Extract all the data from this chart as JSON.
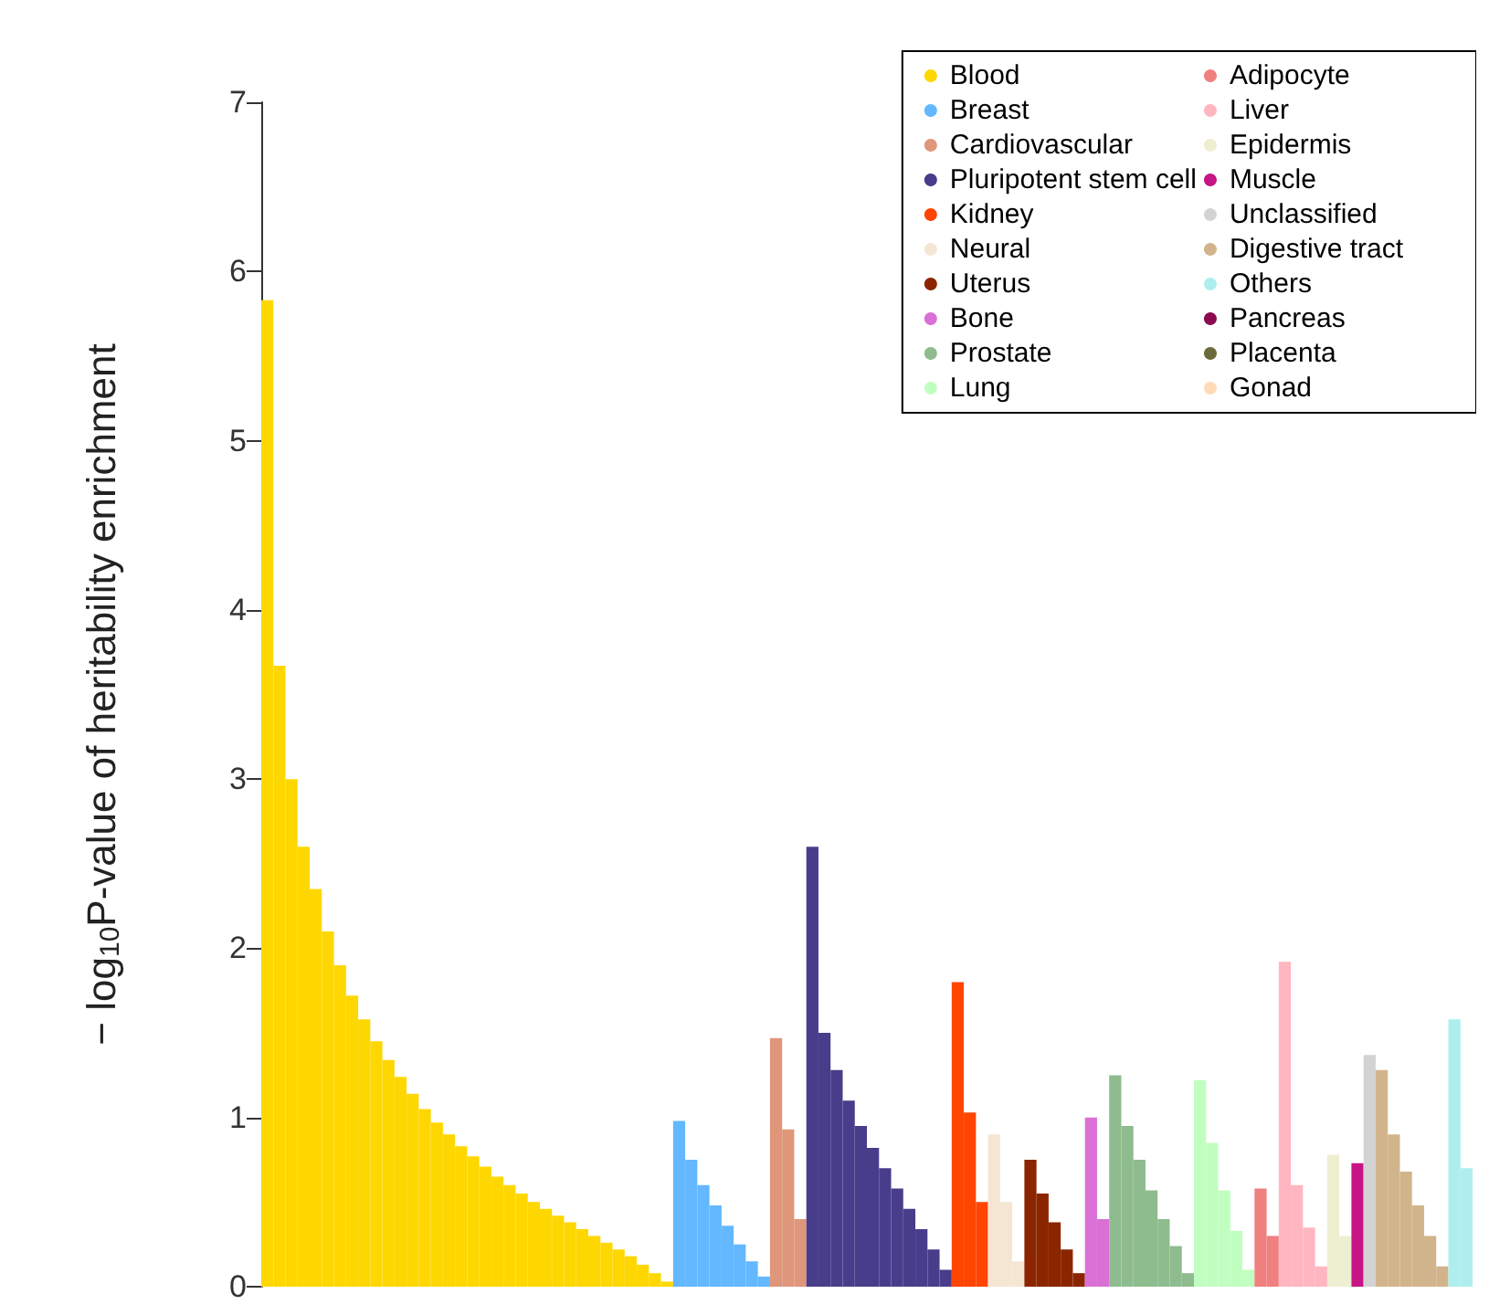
{
  "chart_data": {
    "type": "bar",
    "stacked": true,
    "ylabel": "− log$_{10}$P-value of heritability enrichment",
    "categories": [
      null,
      null,
      null,
      null,
      null,
      null,
      null,
      null,
      null,
      null,
      null,
      null,
      null,
      null,
      null,
      null,
      null,
      null,
      null,
      null,
      null,
      null,
      null,
      null,
      null,
      null,
      null,
      null,
      null,
      null,
      null,
      null,
      null,
      null,
      null,
      null,
      null,
      null,
      null,
      null,
      null,
      null,
      null,
      null,
      null,
      null,
      null,
      null,
      null,
      null,
      null,
      null,
      null,
      null,
      null,
      null,
      null,
      null,
      null,
      null,
      null,
      null,
      null,
      null,
      null,
      null,
      null,
      null,
      null,
      null,
      null,
      null,
      null,
      null,
      null,
      null,
      null,
      null,
      null,
      null,
      null,
      null,
      null,
      null,
      null,
      null,
      null,
      null,
      null,
      null,
      null,
      null,
      null,
      null,
      null,
      null,
      null,
      null,
      null,
      null
    ],
    "ylim": [
      0,
      7
    ],
    "yticks": [
      0,
      1,
      2,
      3,
      4,
      5,
      6,
      7
    ],
    "tick_labels": "y",
    "grid": false,
    "legend": "top right",
    "series": [
      {
        "name": "Blood",
        "color": "#ffd700",
        "values": [
          5.83,
          3.67,
          3.0,
          2.6,
          2.35,
          2.1,
          1.9,
          1.72,
          1.58,
          1.45,
          1.34,
          1.24,
          1.14,
          1.05,
          0.97,
          0.9,
          0.83,
          0.77,
          0.71,
          0.65,
          0.6,
          0.55,
          0.5,
          0.46,
          0.42,
          0.38,
          0.34,
          0.3,
          0.26,
          0.22,
          0.18,
          0.13,
          0.08,
          0.03,
          null,
          null,
          null,
          null,
          null,
          null,
          null,
          null,
          null,
          null,
          null,
          null,
          null,
          null,
          null,
          null,
          null,
          null,
          null,
          null,
          null,
          null,
          null,
          null,
          null,
          null,
          null,
          null,
          null,
          null,
          null,
          null,
          null,
          null,
          null,
          null,
          null,
          null,
          null,
          null,
          null,
          null,
          null,
          null,
          null,
          null,
          null,
          null,
          null,
          null,
          null,
          null,
          null,
          null,
          null,
          null,
          null,
          null,
          null,
          null,
          null,
          null,
          null,
          null,
          null,
          null
        ]
      },
      {
        "name": "Breast",
        "color": "#63b8ff",
        "values": [
          null,
          null,
          null,
          null,
          null,
          null,
          null,
          null,
          null,
          null,
          null,
          null,
          null,
          null,
          null,
          null,
          null,
          null,
          null,
          null,
          null,
          null,
          null,
          null,
          null,
          null,
          null,
          null,
          null,
          null,
          null,
          null,
          null,
          null,
          0.98,
          0.75,
          0.6,
          0.48,
          0.36,
          0.25,
          0.15,
          0.06,
          null,
          null,
          null,
          null,
          null,
          null,
          null,
          null,
          null,
          null,
          null,
          null,
          null,
          null,
          null,
          null,
          null,
          null,
          null,
          null,
          null,
          null,
          null,
          null,
          null,
          null,
          null,
          null,
          null,
          null,
          null,
          null,
          null,
          null,
          null,
          null,
          null,
          null,
          null,
          null,
          null,
          null,
          null,
          null,
          null,
          null,
          null,
          null,
          null,
          null,
          null,
          null,
          null,
          null,
          null,
          null,
          null,
          null
        ]
      },
      {
        "name": "Cardiovascular",
        "color": "#e0967a",
        "values": [
          null,
          null,
          null,
          null,
          null,
          null,
          null,
          null,
          null,
          null,
          null,
          null,
          null,
          null,
          null,
          null,
          null,
          null,
          null,
          null,
          null,
          null,
          null,
          null,
          null,
          null,
          null,
          null,
          null,
          null,
          null,
          null,
          null,
          null,
          null,
          null,
          null,
          null,
          null,
          null,
          null,
          null,
          1.47,
          0.93,
          0.4,
          null,
          null,
          null,
          null,
          null,
          null,
          null,
          null,
          null,
          null,
          null,
          null,
          null,
          null,
          null,
          null,
          null,
          null,
          null,
          null,
          null,
          null,
          null,
          null,
          null,
          null,
          null,
          null,
          null,
          null,
          null,
          null,
          null,
          null,
          null,
          null,
          null,
          null,
          null,
          null,
          null,
          null,
          null,
          null,
          null,
          null,
          null,
          null,
          null,
          null,
          null,
          null,
          null,
          null,
          null
        ]
      },
      {
        "name": "Pluripotent stem cell",
        "color": "#483d8b",
        "values": [
          null,
          null,
          null,
          null,
          null,
          null,
          null,
          null,
          null,
          null,
          null,
          null,
          null,
          null,
          null,
          null,
          null,
          null,
          null,
          null,
          null,
          null,
          null,
          null,
          null,
          null,
          null,
          null,
          null,
          null,
          null,
          null,
          null,
          null,
          null,
          null,
          null,
          null,
          null,
          null,
          null,
          null,
          null,
          null,
          null,
          2.6,
          1.5,
          1.28,
          1.1,
          0.95,
          0.82,
          0.7,
          0.58,
          0.46,
          0.34,
          0.22,
          0.1,
          null,
          null,
          null,
          null,
          null,
          null,
          null,
          null,
          null,
          null,
          null,
          null,
          null,
          null,
          null,
          null,
          null,
          null,
          null,
          null,
          null,
          null,
          null,
          null,
          null,
          null,
          null,
          null,
          null,
          null,
          null,
          null,
          null,
          null,
          null,
          null,
          null,
          null,
          null,
          null,
          null,
          null,
          null
        ]
      },
      {
        "name": "Kidney",
        "color": "#ff4500",
        "values": [
          null,
          null,
          null,
          null,
          null,
          null,
          null,
          null,
          null,
          null,
          null,
          null,
          null,
          null,
          null,
          null,
          null,
          null,
          null,
          null,
          null,
          null,
          null,
          null,
          null,
          null,
          null,
          null,
          null,
          null,
          null,
          null,
          null,
          null,
          null,
          null,
          null,
          null,
          null,
          null,
          null,
          null,
          null,
          null,
          null,
          null,
          null,
          null,
          null,
          null,
          null,
          null,
          null,
          null,
          null,
          null,
          null,
          1.8,
          1.03,
          0.5,
          null,
          null,
          null,
          null,
          null,
          null,
          null,
          null,
          null,
          null,
          null,
          null,
          null,
          null,
          null,
          null,
          null,
          null,
          null,
          null,
          null,
          null,
          null,
          null,
          null,
          null,
          null,
          null,
          null,
          null,
          null,
          null,
          null,
          null,
          null,
          null,
          null,
          null,
          null,
          null
        ]
      },
      {
        "name": "Neural",
        "color": "#f5e6d3",
        "values": [
          null,
          null,
          null,
          null,
          null,
          null,
          null,
          null,
          null,
          null,
          null,
          null,
          null,
          null,
          null,
          null,
          null,
          null,
          null,
          null,
          null,
          null,
          null,
          null,
          null,
          null,
          null,
          null,
          null,
          null,
          null,
          null,
          null,
          null,
          null,
          null,
          null,
          null,
          null,
          null,
          null,
          null,
          null,
          null,
          null,
          null,
          null,
          null,
          null,
          null,
          null,
          null,
          null,
          null,
          null,
          null,
          null,
          null,
          null,
          null,
          0.9,
          0.5,
          0.15,
          null,
          null,
          null,
          null,
          null,
          null,
          null,
          null,
          null,
          null,
          null,
          null,
          null,
          null,
          null,
          null,
          null,
          null,
          null,
          null,
          null,
          null,
          null,
          null,
          null,
          null,
          null,
          null,
          null,
          null,
          null,
          null,
          null,
          null,
          null,
          null,
          null
        ]
      },
      {
        "name": "Uterus",
        "color": "#8b2500",
        "values": [
          null,
          null,
          null,
          null,
          null,
          null,
          null,
          null,
          null,
          null,
          null,
          null,
          null,
          null,
          null,
          null,
          null,
          null,
          null,
          null,
          null,
          null,
          null,
          null,
          null,
          null,
          null,
          null,
          null,
          null,
          null,
          null,
          null,
          null,
          null,
          null,
          null,
          null,
          null,
          null,
          null,
          null,
          null,
          null,
          null,
          null,
          null,
          null,
          null,
          null,
          null,
          null,
          null,
          null,
          null,
          null,
          null,
          null,
          null,
          null,
          null,
          null,
          null,
          0.75,
          0.55,
          0.38,
          0.22,
          0.08,
          null,
          null,
          null,
          null,
          null,
          null,
          null,
          null,
          null,
          null,
          null,
          null,
          null,
          null,
          null,
          null,
          null,
          null,
          null,
          null,
          null,
          null,
          null,
          null,
          null,
          null,
          null,
          null,
          null,
          null,
          null,
          null
        ]
      },
      {
        "name": "Bone",
        "color": "#da70d6",
        "values": [
          null,
          null,
          null,
          null,
          null,
          null,
          null,
          null,
          null,
          null,
          null,
          null,
          null,
          null,
          null,
          null,
          null,
          null,
          null,
          null,
          null,
          null,
          null,
          null,
          null,
          null,
          null,
          null,
          null,
          null,
          null,
          null,
          null,
          null,
          null,
          null,
          null,
          null,
          null,
          null,
          null,
          null,
          null,
          null,
          null,
          null,
          null,
          null,
          null,
          null,
          null,
          null,
          null,
          null,
          null,
          null,
          null,
          null,
          null,
          null,
          null,
          null,
          null,
          null,
          null,
          null,
          null,
          null,
          1.0,
          0.4,
          null,
          null,
          null,
          null,
          null,
          null,
          null,
          null,
          null,
          null,
          null,
          null,
          null,
          null,
          null,
          null,
          null,
          null,
          null,
          null,
          null,
          null,
          null,
          null,
          null,
          null,
          null,
          null,
          null,
          null
        ]
      },
      {
        "name": "Prostate",
        "color": "#8fbc8f",
        "values": [
          null,
          null,
          null,
          null,
          null,
          null,
          null,
          null,
          null,
          null,
          null,
          null,
          null,
          null,
          null,
          null,
          null,
          null,
          null,
          null,
          null,
          null,
          null,
          null,
          null,
          null,
          null,
          null,
          null,
          null,
          null,
          null,
          null,
          null,
          null,
          null,
          null,
          null,
          null,
          null,
          null,
          null,
          null,
          null,
          null,
          null,
          null,
          null,
          null,
          null,
          null,
          null,
          null,
          null,
          null,
          null,
          null,
          null,
          null,
          null,
          null,
          null,
          null,
          null,
          null,
          null,
          null,
          null,
          null,
          null,
          1.25,
          0.95,
          0.75,
          0.57,
          0.4,
          0.24,
          0.08,
          null,
          null,
          null,
          null,
          null,
          null,
          null,
          null,
          null,
          null,
          null,
          null,
          null,
          null,
          null,
          null,
          null,
          null,
          null,
          null,
          null,
          null,
          null
        ]
      },
      {
        "name": "Lung",
        "color": "#c1ffc1",
        "values": [
          null,
          null,
          null,
          null,
          null,
          null,
          null,
          null,
          null,
          null,
          null,
          null,
          null,
          null,
          null,
          null,
          null,
          null,
          null,
          null,
          null,
          null,
          null,
          null,
          null,
          null,
          null,
          null,
          null,
          null,
          null,
          null,
          null,
          null,
          null,
          null,
          null,
          null,
          null,
          null,
          null,
          null,
          null,
          null,
          null,
          null,
          null,
          null,
          null,
          null,
          null,
          null,
          null,
          null,
          null,
          null,
          null,
          null,
          null,
          null,
          null,
          null,
          null,
          null,
          null,
          null,
          null,
          null,
          null,
          null,
          null,
          null,
          null,
          null,
          null,
          null,
          null,
          1.22,
          0.85,
          0.57,
          0.33,
          0.1,
          null,
          null,
          null,
          null,
          null,
          null,
          null,
          null,
          null,
          null,
          null,
          null,
          null,
          null,
          null,
          null,
          null,
          null
        ]
      },
      {
        "name": "Adipocyte",
        "color": "#f08080",
        "values": [
          null,
          null,
          null,
          null,
          null,
          null,
          null,
          null,
          null,
          null,
          null,
          null,
          null,
          null,
          null,
          null,
          null,
          null,
          null,
          null,
          null,
          null,
          null,
          null,
          null,
          null,
          null,
          null,
          null,
          null,
          null,
          null,
          null,
          null,
          null,
          null,
          null,
          null,
          null,
          null,
          null,
          null,
          null,
          null,
          null,
          null,
          null,
          null,
          null,
          null,
          null,
          null,
          null,
          null,
          null,
          null,
          null,
          null,
          null,
          null,
          null,
          null,
          null,
          null,
          null,
          null,
          null,
          null,
          null,
          null,
          null,
          null,
          null,
          null,
          null,
          null,
          null,
          null,
          null,
          null,
          null,
          null,
          0.58,
          0.3,
          null,
          null,
          null,
          null,
          null,
          null,
          null,
          null,
          null,
          null,
          null,
          null,
          null,
          null,
          null,
          null
        ]
      },
      {
        "name": "Liver",
        "color": "#ffb6c1",
        "values": [
          null,
          null,
          null,
          null,
          null,
          null,
          null,
          null,
          null,
          null,
          null,
          null,
          null,
          null,
          null,
          null,
          null,
          null,
          null,
          null,
          null,
          null,
          null,
          null,
          null,
          null,
          null,
          null,
          null,
          null,
          null,
          null,
          null,
          null,
          null,
          null,
          null,
          null,
          null,
          null,
          null,
          null,
          null,
          null,
          null,
          null,
          null,
          null,
          null,
          null,
          null,
          null,
          null,
          null,
          null,
          null,
          null,
          null,
          null,
          null,
          null,
          null,
          null,
          null,
          null,
          null,
          null,
          null,
          null,
          null,
          null,
          null,
          null,
          null,
          null,
          null,
          null,
          null,
          null,
          null,
          null,
          null,
          null,
          null,
          1.92,
          0.6,
          0.35,
          0.12,
          null,
          null,
          null,
          null,
          null,
          null,
          null,
          null,
          null,
          null,
          null,
          null
        ]
      },
      {
        "name": "Epidermis",
        "color": "#eeeed1",
        "values": [
          null,
          null,
          null,
          null,
          null,
          null,
          null,
          null,
          null,
          null,
          null,
          null,
          null,
          null,
          null,
          null,
          null,
          null,
          null,
          null,
          null,
          null,
          null,
          null,
          null,
          null,
          null,
          null,
          null,
          null,
          null,
          null,
          null,
          null,
          null,
          null,
          null,
          null,
          null,
          null,
          null,
          null,
          null,
          null,
          null,
          null,
          null,
          null,
          null,
          null,
          null,
          null,
          null,
          null,
          null,
          null,
          null,
          null,
          null,
          null,
          null,
          null,
          null,
          null,
          null,
          null,
          null,
          null,
          null,
          null,
          null,
          null,
          null,
          null,
          null,
          null,
          null,
          null,
          null,
          null,
          null,
          null,
          null,
          null,
          null,
          null,
          null,
          null,
          0.78,
          0.3,
          null,
          null,
          null,
          null,
          null,
          null,
          null,
          null,
          null,
          null
        ]
      },
      {
        "name": "Muscle",
        "color": "#c71585",
        "values": [
          null,
          null,
          null,
          null,
          null,
          null,
          null,
          null,
          null,
          null,
          null,
          null,
          null,
          null,
          null,
          null,
          null,
          null,
          null,
          null,
          null,
          null,
          null,
          null,
          null,
          null,
          null,
          null,
          null,
          null,
          null,
          null,
          null,
          null,
          null,
          null,
          null,
          null,
          null,
          null,
          null,
          null,
          null,
          null,
          null,
          null,
          null,
          null,
          null,
          null,
          null,
          null,
          null,
          null,
          null,
          null,
          null,
          null,
          null,
          null,
          null,
          null,
          null,
          null,
          null,
          null,
          null,
          null,
          null,
          null,
          null,
          null,
          null,
          null,
          null,
          null,
          null,
          null,
          null,
          null,
          null,
          null,
          null,
          null,
          null,
          null,
          null,
          null,
          null,
          null,
          0.73,
          null,
          null,
          null,
          null,
          null,
          null,
          null,
          null,
          null
        ]
      },
      {
        "name": "Unclassified",
        "color": "#d3d3d3",
        "values": [
          null,
          null,
          null,
          null,
          null,
          null,
          null,
          null,
          null,
          null,
          null,
          null,
          null,
          null,
          null,
          null,
          null,
          null,
          null,
          null,
          null,
          null,
          null,
          null,
          null,
          null,
          null,
          null,
          null,
          null,
          null,
          null,
          null,
          null,
          null,
          null,
          null,
          null,
          null,
          null,
          null,
          null,
          null,
          null,
          null,
          null,
          null,
          null,
          null,
          null,
          null,
          null,
          null,
          null,
          null,
          null,
          null,
          null,
          null,
          null,
          null,
          null,
          null,
          null,
          null,
          null,
          null,
          null,
          null,
          null,
          null,
          null,
          null,
          null,
          null,
          null,
          null,
          null,
          null,
          null,
          null,
          null,
          null,
          null,
          null,
          null,
          null,
          null,
          null,
          null,
          null,
          1.37,
          null,
          null,
          null,
          null,
          null,
          null,
          null,
          null
        ]
      },
      {
        "name": "Digestive tract",
        "color": "#d2b48c",
        "values": [
          null,
          null,
          null,
          null,
          null,
          null,
          null,
          null,
          null,
          null,
          null,
          null,
          null,
          null,
          null,
          null,
          null,
          null,
          null,
          null,
          null,
          null,
          null,
          null,
          null,
          null,
          null,
          null,
          null,
          null,
          null,
          null,
          null,
          null,
          null,
          null,
          null,
          null,
          null,
          null,
          null,
          null,
          null,
          null,
          null,
          null,
          null,
          null,
          null,
          null,
          null,
          null,
          null,
          null,
          null,
          null,
          null,
          null,
          null,
          null,
          null,
          null,
          null,
          null,
          null,
          null,
          null,
          null,
          null,
          null,
          null,
          null,
          null,
          null,
          null,
          null,
          null,
          null,
          null,
          null,
          null,
          null,
          null,
          null,
          null,
          null,
          null,
          null,
          null,
          null,
          null,
          null,
          1.28,
          0.9,
          0.68,
          0.48,
          0.3,
          0.12,
          null,
          null
        ]
      },
      {
        "name": "Others",
        "color": "#aeeeee",
        "values": [
          null,
          null,
          null,
          null,
          null,
          null,
          null,
          null,
          null,
          null,
          null,
          null,
          null,
          null,
          null,
          null,
          null,
          null,
          null,
          null,
          null,
          null,
          null,
          null,
          null,
          null,
          null,
          null,
          null,
          null,
          null,
          null,
          null,
          null,
          null,
          null,
          null,
          null,
          null,
          null,
          null,
          null,
          null,
          null,
          null,
          null,
          null,
          null,
          null,
          null,
          null,
          null,
          null,
          null,
          null,
          null,
          null,
          null,
          null,
          null,
          null,
          null,
          null,
          null,
          null,
          null,
          null,
          null,
          null,
          null,
          null,
          null,
          null,
          null,
          null,
          null,
          null,
          null,
          null,
          null,
          null,
          null,
          null,
          null,
          null,
          null,
          null,
          null,
          null,
          null,
          null,
          null,
          null,
          null,
          null,
          null,
          null,
          null,
          1.58,
          0.7
        ]
      },
      {
        "name": "Pancreas",
        "color": "#8b0a50",
        "values": [
          null,
          null,
          null,
          null,
          null,
          null,
          null,
          null,
          null,
          null,
          null,
          null,
          null,
          null,
          null,
          null,
          null,
          null,
          null,
          null,
          null,
          null,
          null,
          null,
          null,
          null,
          null,
          null,
          null,
          null,
          null,
          null,
          null,
          null,
          null,
          null,
          null,
          null,
          null,
          null,
          null,
          null,
          null,
          null,
          null,
          null,
          null,
          null,
          null,
          null,
          null,
          null,
          null,
          null,
          null,
          null,
          null,
          null,
          null,
          null,
          null,
          null,
          null,
          null,
          null,
          null,
          null,
          null,
          null,
          null,
          null,
          null,
          null,
          null,
          null,
          null,
          null,
          null,
          null,
          null,
          null,
          null,
          null,
          null,
          null,
          null,
          null,
          null,
          null,
          null,
          null,
          null,
          null,
          null,
          null,
          null,
          null,
          null,
          null,
          null
        ]
      },
      {
        "name": "Placenta",
        "color": "#6b6b3a",
        "values": [
          null,
          null,
          null,
          null,
          null,
          null,
          null,
          null,
          null,
          null,
          null,
          null,
          null,
          null,
          null,
          null,
          null,
          null,
          null,
          null,
          null,
          null,
          null,
          null,
          null,
          null,
          null,
          null,
          null,
          null,
          null,
          null,
          null,
          null,
          null,
          null,
          null,
          null,
          null,
          null,
          null,
          null,
          null,
          null,
          null,
          null,
          null,
          null,
          null,
          null,
          null,
          null,
          null,
          null,
          null,
          null,
          null,
          null,
          null,
          null,
          null,
          null,
          null,
          null,
          null,
          null,
          null,
          null,
          null,
          null,
          null,
          null,
          null,
          null,
          null,
          null,
          null,
          null,
          null,
          null,
          null,
          null,
          null,
          null,
          null,
          null,
          null,
          null,
          null,
          null,
          null,
          null,
          null,
          null,
          null,
          null,
          null,
          null,
          null,
          null
        ]
      },
      {
        "name": "Gonad",
        "color": "#ffdab9",
        "values": [
          null,
          null,
          null,
          null,
          null,
          null,
          null,
          null,
          null,
          null,
          null,
          null,
          null,
          null,
          null,
          null,
          null,
          null,
          null,
          null,
          null,
          null,
          null,
          null,
          null,
          null,
          null,
          null,
          null,
          null,
          null,
          null,
          null,
          null,
          null,
          null,
          null,
          null,
          null,
          null,
          null,
          null,
          null,
          null,
          null,
          null,
          null,
          null,
          null,
          null,
          null,
          null,
          null,
          null,
          null,
          null,
          null,
          null,
          null,
          null,
          null,
          null,
          null,
          null,
          null,
          null,
          null,
          null,
          null,
          null,
          null,
          null,
          null,
          null,
          null,
          null,
          null,
          null,
          null,
          null,
          null,
          null,
          null,
          null,
          null,
          null,
          null,
          null,
          null,
          null,
          null,
          null,
          null,
          null,
          null,
          null,
          null,
          null,
          null,
          null
        ]
      }
    ]
  }
}
